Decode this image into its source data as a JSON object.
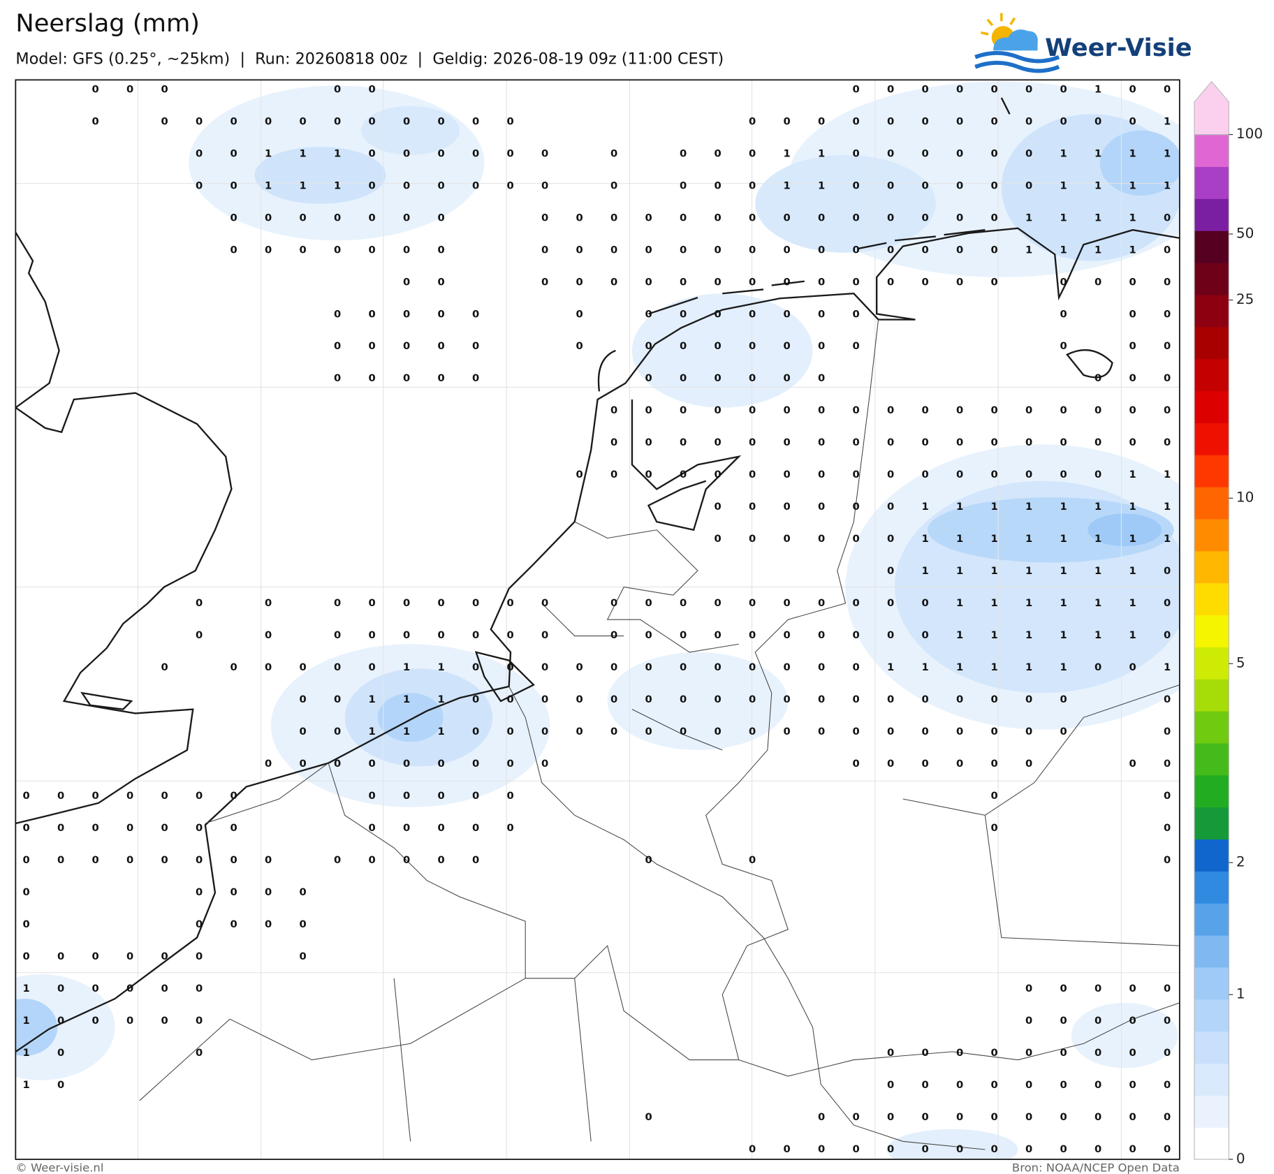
{
  "header": {
    "title": "Neerslag (mm)",
    "subtitle": "Model: GFS (0.25°, ~25km)  |  Run: 20260818 00z  |  Geldig: 2026-08-19 09z (11:00 CEST)"
  },
  "logo": "Weer-Visie",
  "grid": [
    [
      null,
      null,
      0,
      0,
      0,
      null,
      null,
      null,
      null,
      0,
      0,
      null,
      null,
      null,
      null,
      null,
      null,
      null,
      null,
      null,
      null,
      null,
      null,
      null,
      0,
      0,
      0,
      0,
      0,
      0,
      0,
      1,
      0,
      0
    ],
    [
      null,
      null,
      0,
      null,
      0,
      0,
      0,
      0,
      0,
      0,
      0,
      0,
      0,
      0,
      0,
      null,
      null,
      null,
      null,
      null,
      null,
      0,
      0,
      0,
      0,
      0,
      0,
      0,
      0,
      0,
      0,
      0,
      0,
      1
    ],
    [
      null,
      null,
      null,
      null,
      null,
      0,
      0,
      1,
      1,
      1,
      0,
      0,
      0,
      0,
      0,
      0,
      null,
      0,
      null,
      0,
      0,
      0,
      1,
      1,
      0,
      0,
      0,
      0,
      0,
      0,
      1,
      1,
      1,
      1
    ],
    [
      null,
      null,
      null,
      null,
      null,
      0,
      0,
      1,
      1,
      1,
      0,
      0,
      0,
      0,
      0,
      0,
      null,
      0,
      null,
      0,
      0,
      0,
      1,
      1,
      0,
      0,
      0,
      0,
      0,
      0,
      1,
      1,
      1,
      1
    ],
    [
      null,
      null,
      null,
      null,
      null,
      null,
      0,
      0,
      0,
      0,
      0,
      0,
      0,
      null,
      null,
      0,
      0,
      0,
      0,
      0,
      0,
      0,
      0,
      0,
      0,
      0,
      0,
      0,
      0,
      1,
      1,
      1,
      1,
      0
    ],
    [
      null,
      null,
      null,
      null,
      null,
      null,
      0,
      0,
      0,
      0,
      0,
      0,
      0,
      null,
      null,
      0,
      0,
      0,
      0,
      0,
      0,
      0,
      0,
      0,
      0,
      0,
      0,
      0,
      0,
      1,
      1,
      1,
      1,
      0
    ],
    [
      null,
      null,
      null,
      null,
      null,
      null,
      null,
      null,
      null,
      null,
      null,
      0,
      0,
      null,
      null,
      0,
      0,
      0,
      0,
      0,
      0,
      0,
      0,
      0,
      0,
      0,
      0,
      0,
      0,
      null,
      0,
      0,
      0,
      0
    ],
    [
      null,
      null,
      null,
      null,
      null,
      null,
      null,
      null,
      null,
      0,
      0,
      0,
      0,
      0,
      null,
      null,
      0,
      null,
      0,
      0,
      0,
      0,
      0,
      0,
      0,
      null,
      null,
      null,
      null,
      null,
      0,
      null,
      0,
      0
    ],
    [
      null,
      null,
      null,
      null,
      null,
      null,
      null,
      null,
      null,
      0,
      0,
      0,
      0,
      0,
      null,
      null,
      0,
      null,
      0,
      0,
      0,
      0,
      0,
      0,
      0,
      null,
      null,
      null,
      null,
      null,
      0,
      null,
      0,
      0
    ],
    [
      null,
      null,
      null,
      null,
      null,
      null,
      null,
      null,
      null,
      0,
      0,
      0,
      0,
      0,
      null,
      null,
      null,
      null,
      0,
      0,
      0,
      0,
      0,
      0,
      null,
      null,
      null,
      null,
      null,
      null,
      null,
      0,
      0,
      0
    ],
    [
      null,
      null,
      null,
      null,
      null,
      null,
      null,
      null,
      null,
      null,
      null,
      null,
      null,
      null,
      null,
      null,
      null,
      0,
      0,
      0,
      0,
      0,
      0,
      0,
      0,
      0,
      0,
      0,
      0,
      0,
      0,
      0,
      0,
      0
    ],
    [
      null,
      null,
      null,
      null,
      null,
      null,
      null,
      null,
      null,
      null,
      null,
      null,
      null,
      null,
      null,
      null,
      null,
      0,
      0,
      0,
      0,
      0,
      0,
      0,
      0,
      0,
      0,
      0,
      0,
      0,
      0,
      0,
      0,
      0
    ],
    [
      null,
      null,
      null,
      null,
      null,
      null,
      null,
      null,
      null,
      null,
      null,
      null,
      null,
      null,
      null,
      null,
      0,
      0,
      0,
      0,
      0,
      0,
      0,
      0,
      0,
      0,
      0,
      0,
      0,
      0,
      0,
      0,
      1,
      1
    ],
    [
      null,
      null,
      null,
      null,
      null,
      null,
      null,
      null,
      null,
      null,
      null,
      null,
      null,
      null,
      null,
      null,
      null,
      null,
      null,
      null,
      0,
      0,
      0,
      0,
      0,
      0,
      1,
      1,
      1,
      1,
      1,
      1,
      1,
      1
    ],
    [
      null,
      null,
      null,
      null,
      null,
      null,
      null,
      null,
      null,
      null,
      null,
      null,
      null,
      null,
      null,
      null,
      null,
      null,
      null,
      null,
      0,
      0,
      0,
      0,
      0,
      0,
      1,
      1,
      1,
      1,
      1,
      1,
      1,
      1
    ],
    [
      null,
      null,
      null,
      null,
      null,
      null,
      null,
      null,
      null,
      null,
      null,
      null,
      null,
      null,
      null,
      null,
      null,
      null,
      null,
      null,
      null,
      null,
      null,
      null,
      null,
      0,
      1,
      1,
      1,
      1,
      1,
      1,
      1,
      0
    ],
    [
      null,
      null,
      null,
      null,
      null,
      0,
      null,
      0,
      null,
      0,
      0,
      0,
      0,
      0,
      0,
      0,
      null,
      0,
      0,
      0,
      0,
      0,
      0,
      0,
      0,
      0,
      0,
      1,
      1,
      1,
      1,
      1,
      1,
      0
    ],
    [
      null,
      null,
      null,
      null,
      null,
      0,
      null,
      0,
      null,
      0,
      0,
      0,
      0,
      0,
      0,
      0,
      null,
      0,
      0,
      0,
      0,
      0,
      0,
      0,
      0,
      0,
      0,
      1,
      1,
      1,
      1,
      1,
      1,
      0
    ],
    [
      null,
      null,
      null,
      null,
      0,
      null,
      0,
      0,
      0,
      0,
      0,
      1,
      1,
      0,
      0,
      0,
      0,
      0,
      0,
      0,
      0,
      0,
      0,
      0,
      0,
      1,
      1,
      1,
      1,
      1,
      1,
      0,
      0,
      1
    ],
    [
      null,
      null,
      null,
      null,
      null,
      null,
      null,
      null,
      0,
      0,
      1,
      1,
      1,
      0,
      0,
      0,
      0,
      0,
      0,
      0,
      0,
      0,
      0,
      0,
      0,
      0,
      0,
      0,
      0,
      0,
      0,
      null,
      null,
      0
    ],
    [
      null,
      null,
      null,
      null,
      null,
      null,
      null,
      null,
      0,
      0,
      1,
      1,
      1,
      0,
      0,
      0,
      0,
      0,
      0,
      0,
      0,
      0,
      0,
      0,
      0,
      0,
      0,
      0,
      0,
      0,
      0,
      null,
      null,
      0
    ],
    [
      null,
      null,
      null,
      null,
      null,
      null,
      null,
      0,
      0,
      0,
      0,
      0,
      0,
      0,
      0,
      0,
      null,
      null,
      null,
      null,
      null,
      null,
      null,
      null,
      0,
      0,
      0,
      0,
      0,
      0,
      null,
      null,
      0,
      0
    ],
    [
      0,
      0,
      0,
      0,
      0,
      0,
      0,
      null,
      null,
      null,
      0,
      0,
      0,
      0,
      0,
      null,
      null,
      null,
      null,
      null,
      null,
      null,
      null,
      null,
      null,
      null,
      null,
      null,
      0,
      null,
      null,
      null,
      null,
      0
    ],
    [
      0,
      0,
      0,
      0,
      0,
      0,
      0,
      null,
      null,
      null,
      0,
      0,
      0,
      0,
      0,
      null,
      null,
      null,
      null,
      null,
      null,
      null,
      null,
      null,
      null,
      null,
      null,
      null,
      0,
      null,
      null,
      null,
      null,
      0
    ],
    [
      0,
      0,
      0,
      0,
      0,
      0,
      0,
      0,
      null,
      0,
      0,
      0,
      0,
      0,
      null,
      null,
      null,
      null,
      0,
      null,
      null,
      0,
      null,
      null,
      null,
      null,
      null,
      null,
      null,
      null,
      null,
      null,
      null,
      0
    ],
    [
      0,
      null,
      null,
      null,
      null,
      0,
      0,
      0,
      0,
      null,
      null,
      null,
      null,
      null,
      null,
      null,
      null,
      null,
      null,
      null,
      null,
      null,
      null,
      null,
      null,
      null,
      null,
      null,
      null,
      null,
      null,
      null,
      null,
      null
    ],
    [
      0,
      null,
      null,
      null,
      null,
      0,
      0,
      0,
      0,
      null,
      null,
      null,
      null,
      null,
      null,
      null,
      null,
      null,
      null,
      null,
      null,
      null,
      null,
      null,
      null,
      null,
      null,
      null,
      null,
      null,
      null,
      null,
      null,
      null
    ],
    [
      0,
      0,
      0,
      0,
      0,
      0,
      null,
      null,
      0,
      null,
      null,
      null,
      null,
      null,
      null,
      null,
      null,
      null,
      null,
      null,
      null,
      null,
      null,
      null,
      null,
      null,
      null,
      null,
      null,
      null,
      null,
      null,
      null,
      null
    ],
    [
      1,
      0,
      0,
      0,
      0,
      0,
      null,
      null,
      null,
      null,
      null,
      null,
      null,
      null,
      null,
      null,
      null,
      null,
      null,
      null,
      null,
      null,
      null,
      null,
      null,
      null,
      null,
      null,
      null,
      0,
      0,
      0,
      0,
      0
    ],
    [
      1,
      0,
      0,
      0,
      0,
      0,
      null,
      null,
      null,
      null,
      null,
      null,
      null,
      null,
      null,
      null,
      null,
      null,
      null,
      null,
      null,
      null,
      null,
      null,
      null,
      null,
      null,
      null,
      null,
      0,
      0,
      0,
      0,
      0
    ],
    [
      1,
      0,
      null,
      null,
      null,
      0,
      null,
      null,
      null,
      null,
      null,
      null,
      null,
      null,
      null,
      null,
      null,
      null,
      null,
      null,
      null,
      null,
      null,
      null,
      null,
      0,
      0,
      0,
      0,
      0,
      0,
      0,
      0,
      0
    ],
    [
      1,
      0,
      null,
      null,
      null,
      null,
      null,
      null,
      null,
      null,
      null,
      null,
      null,
      null,
      null,
      null,
      null,
      null,
      null,
      null,
      null,
      null,
      null,
      null,
      null,
      0,
      0,
      0,
      0,
      0,
      0,
      0,
      0,
      0
    ],
    [
      null,
      null,
      null,
      null,
      null,
      null,
      null,
      null,
      null,
      null,
      null,
      null,
      null,
      null,
      null,
      null,
      null,
      null,
      0,
      null,
      null,
      null,
      null,
      0,
      0,
      0,
      0,
      0,
      0,
      0,
      0,
      0,
      0,
      0
    ],
    [
      null,
      null,
      null,
      null,
      null,
      null,
      null,
      null,
      null,
      null,
      null,
      null,
      null,
      null,
      null,
      null,
      null,
      null,
      null,
      null,
      null,
      0,
      0,
      0,
      0,
      0,
      0,
      0,
      0,
      0,
      0,
      0,
      0,
      0
    ]
  ],
  "colorbar": {
    "colors": [
      "#ffffff",
      "#eaf3fd",
      "#d9eafc",
      "#c8e0fb",
      "#b3d5f9",
      "#9fcaf7",
      "#80b9f2",
      "#58a2ea",
      "#2f8ae0",
      "#1066cc",
      "#159a3a",
      "#22ac22",
      "#44bb1a",
      "#6fca10",
      "#a6dc08",
      "#cdeb05",
      "#f5f500",
      "#ffdc00",
      "#ffb700",
      "#ff8c00",
      "#ff6600",
      "#ff3800",
      "#ee1100",
      "#dd0000",
      "#c40000",
      "#a80000",
      "#8c0010",
      "#6e0018",
      "#550020",
      "#7b1fa2",
      "#a83fc4",
      "#e067d3",
      "#fbd0ef"
    ],
    "ticks": [
      0,
      1,
      2,
      5,
      10,
      25,
      50,
      100
    ]
  },
  "footer": {
    "left": "© Weer-visie.nl",
    "right": "Bron: NOAA/NCEP Open Data"
  }
}
